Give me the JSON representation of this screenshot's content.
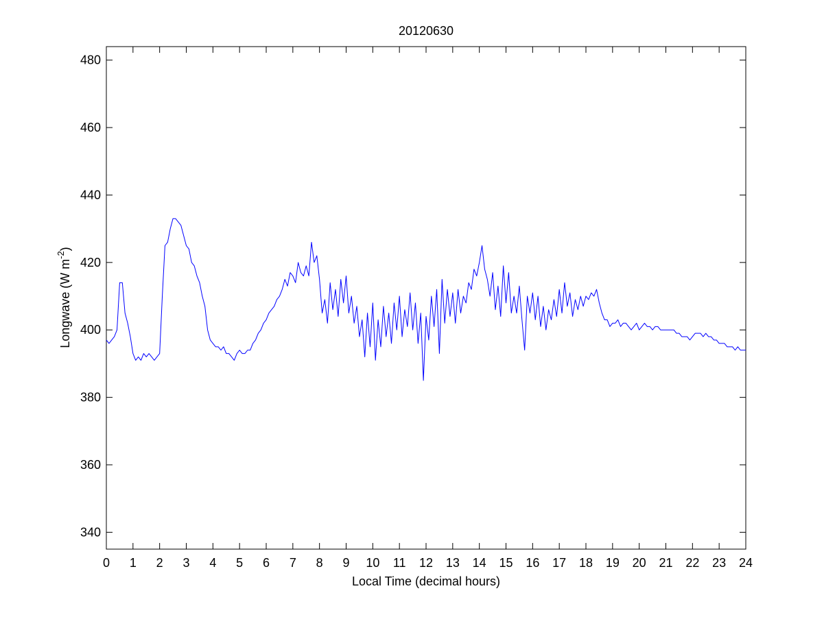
{
  "chart_data": {
    "type": "line",
    "title": "20120630",
    "xlabel": "Local Time (decimal hours)",
    "ylabel": [
      "Longwave (W m",
      "-2",
      ")"
    ],
    "color": "#0000ff",
    "xlim": [
      0,
      24
    ],
    "xticks": [
      0,
      1,
      2,
      3,
      4,
      5,
      6,
      7,
      8,
      9,
      10,
      11,
      12,
      13,
      14,
      15,
      16,
      17,
      18,
      19,
      20,
      21,
      22,
      23,
      24
    ],
    "ylim": [
      335,
      484
    ],
    "yticks": [
      340,
      360,
      380,
      400,
      420,
      440,
      460,
      480
    ],
    "grid": false,
    "x": [
      0,
      0.1,
      0.2,
      0.3,
      0.4,
      0.5,
      0.6,
      0.7,
      0.8,
      0.9,
      1,
      1.1,
      1.2,
      1.3,
      1.4,
      1.5,
      1.6,
      1.7,
      1.8,
      1.9,
      2,
      2.1,
      2.2,
      2.3,
      2.4,
      2.5,
      2.6,
      2.7,
      2.8,
      2.9,
      3,
      3.1,
      3.2,
      3.3,
      3.4,
      3.5,
      3.6,
      3.7,
      3.8,
      3.9,
      4,
      4.1,
      4.2,
      4.3,
      4.4,
      4.5,
      4.6,
      4.7,
      4.8,
      4.9,
      5,
      5.1,
      5.2,
      5.3,
      5.4,
      5.5,
      5.6,
      5.7,
      5.8,
      5.9,
      6,
      6.1,
      6.2,
      6.3,
      6.4,
      6.5,
      6.6,
      6.7,
      6.8,
      6.9,
      7,
      7.1,
      7.2,
      7.3,
      7.4,
      7.5,
      7.6,
      7.7,
      7.8,
      7.9,
      8,
      8.1,
      8.2,
      8.3,
      8.4,
      8.5,
      8.6,
      8.7,
      8.8,
      8.9,
      9,
      9.1,
      9.2,
      9.3,
      9.4,
      9.5,
      9.6,
      9.7,
      9.8,
      9.9,
      10,
      10.1,
      10.2,
      10.3,
      10.4,
      10.5,
      10.6,
      10.7,
      10.8,
      10.9,
      11,
      11.1,
      11.2,
      11.3,
      11.4,
      11.5,
      11.6,
      11.7,
      11.8,
      11.9,
      12,
      12.1,
      12.2,
      12.3,
      12.4,
      12.5,
      12.6,
      12.7,
      12.8,
      12.9,
      13,
      13.1,
      13.2,
      13.3,
      13.4,
      13.5,
      13.6,
      13.7,
      13.8,
      13.9,
      14,
      14.1,
      14.2,
      14.3,
      14.4,
      14.5,
      14.6,
      14.7,
      14.8,
      14.9,
      15,
      15.1,
      15.2,
      15.3,
      15.4,
      15.5,
      15.6,
      15.7,
      15.8,
      15.9,
      16,
      16.1,
      16.2,
      16.3,
      16.4,
      16.5,
      16.6,
      16.7,
      16.8,
      16.9,
      17,
      17.1,
      17.2,
      17.3,
      17.4,
      17.5,
      17.6,
      17.7,
      17.8,
      17.9,
      18,
      18.1,
      18.2,
      18.3,
      18.4,
      18.5,
      18.6,
      18.7,
      18.8,
      18.9,
      19,
      19.1,
      19.2,
      19.3,
      19.4,
      19.5,
      19.6,
      19.7,
      19.8,
      19.9,
      20,
      20.1,
      20.2,
      20.3,
      20.4,
      20.5,
      20.6,
      20.7,
      20.8,
      20.9,
      21,
      21.1,
      21.2,
      21.3,
      21.4,
      21.5,
      21.6,
      21.7,
      21.8,
      21.9,
      22,
      22.1,
      22.2,
      22.3,
      22.4,
      22.5,
      22.6,
      22.7,
      22.8,
      22.9,
      23,
      23.1,
      23.2,
      23.3,
      23.4,
      23.5,
      23.6,
      23.7,
      23.8,
      23.9,
      24
    ],
    "values": [
      397,
      396,
      397,
      398,
      400,
      414,
      414,
      405,
      402,
      398,
      393,
      391,
      392,
      391,
      393,
      392,
      393,
      392,
      391,
      392,
      393,
      410,
      425,
      426,
      430,
      433,
      433,
      432,
      431,
      428,
      425,
      424,
      420,
      419,
      416,
      414,
      410,
      407,
      400,
      397,
      396,
      395,
      395,
      394,
      395,
      393,
      393,
      392,
      391,
      393,
      394,
      393,
      393,
      394,
      394,
      396,
      397,
      399,
      400,
      402,
      403,
      405,
      406,
      407,
      409,
      410,
      412,
      415,
      413,
      417,
      416,
      414,
      420,
      417,
      416,
      419,
      416,
      426,
      420,
      422,
      415,
      405,
      409,
      402,
      414,
      406,
      412,
      404,
      415,
      408,
      416,
      405,
      410,
      402,
      407,
      398,
      403,
      392,
      405,
      395,
      408,
      391,
      403,
      395,
      407,
      398,
      405,
      396,
      408,
      400,
      410,
      398,
      406,
      401,
      411,
      400,
      408,
      396,
      405,
      385,
      404,
      397,
      410,
      401,
      412,
      393,
      415,
      402,
      412,
      404,
      411,
      402,
      412,
      405,
      410,
      408,
      414,
      412,
      418,
      416,
      420,
      425,
      418,
      415,
      410,
      417,
      406,
      413,
      404,
      419,
      408,
      417,
      405,
      410,
      405,
      413,
      403,
      394,
      410,
      405,
      411,
      403,
      410,
      401,
      407,
      400,
      406,
      403,
      409,
      404,
      412,
      405,
      414,
      407,
      411,
      404,
      409,
      406,
      410,
      407,
      410,
      409,
      411,
      410,
      412,
      408,
      405,
      403,
      403,
      401,
      402,
      402,
      403,
      401,
      402,
      402,
      401,
      400,
      401,
      402,
      400,
      401,
      402,
      401,
      401,
      400,
      401,
      401,
      400,
      400,
      400,
      400,
      400,
      400,
      399,
      399,
      398,
      398,
      398,
      397,
      398,
      399,
      399,
      399,
      398,
      399,
      398,
      398,
      397,
      397,
      396,
      396,
      396,
      395,
      395,
      395,
      394,
      395,
      394,
      394,
      394
    ]
  }
}
